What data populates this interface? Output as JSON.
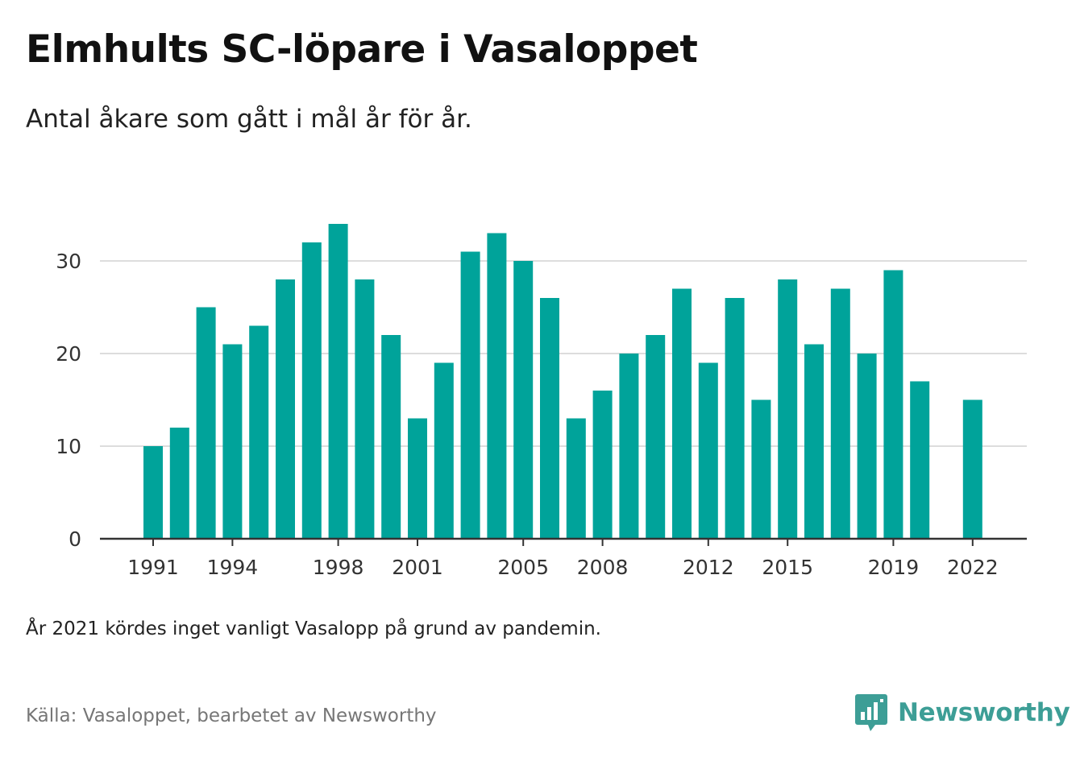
{
  "header": {
    "title": "Elmhults SC-löpare i Vasaloppet",
    "subtitle": "Antal åkare som gått i mål år för år."
  },
  "note": "År 2021 kördes inget vanligt Vasalopp på grund av pandemin.",
  "source": "Källa: Vasaloppet, bearbetet av Newsworthy",
  "logo": {
    "text": "Newsworthy",
    "icon": "bar-chart-speech-bubble-icon"
  },
  "colors": {
    "bar": "#00a39a",
    "grid": "#dddddd",
    "axis": "#333333",
    "logo": "#3d9e96"
  },
  "chart_data": {
    "type": "bar",
    "title": "Elmhults SC-löpare i Vasaloppet",
    "subtitle": "Antal åkare som gått i mål år för år.",
    "xlabel": "",
    "ylabel": "",
    "ylim": [
      0,
      34
    ],
    "yticks": [
      0,
      10,
      20,
      30
    ],
    "xticks": [
      "1991",
      "1994",
      "1998",
      "2001",
      "2005",
      "2008",
      "2012",
      "2015",
      "2019",
      "2022"
    ],
    "grid": true,
    "categories": [
      "1991",
      "1992",
      "1993",
      "1994",
      "1995",
      "1996",
      "1997",
      "1998",
      "1999",
      "2000",
      "2001",
      "2002",
      "2003",
      "2004",
      "2005",
      "2006",
      "2007",
      "2008",
      "2009",
      "2010",
      "2011",
      "2012",
      "2013",
      "2014",
      "2015",
      "2016",
      "2017",
      "2018",
      "2019",
      "2020",
      "2021",
      "2022"
    ],
    "values": [
      10,
      12,
      25,
      21,
      23,
      28,
      32,
      34,
      28,
      22,
      13,
      19,
      31,
      33,
      30,
      26,
      13,
      16,
      20,
      22,
      27,
      19,
      26,
      15,
      28,
      21,
      27,
      20,
      29,
      17,
      null,
      15
    ]
  }
}
